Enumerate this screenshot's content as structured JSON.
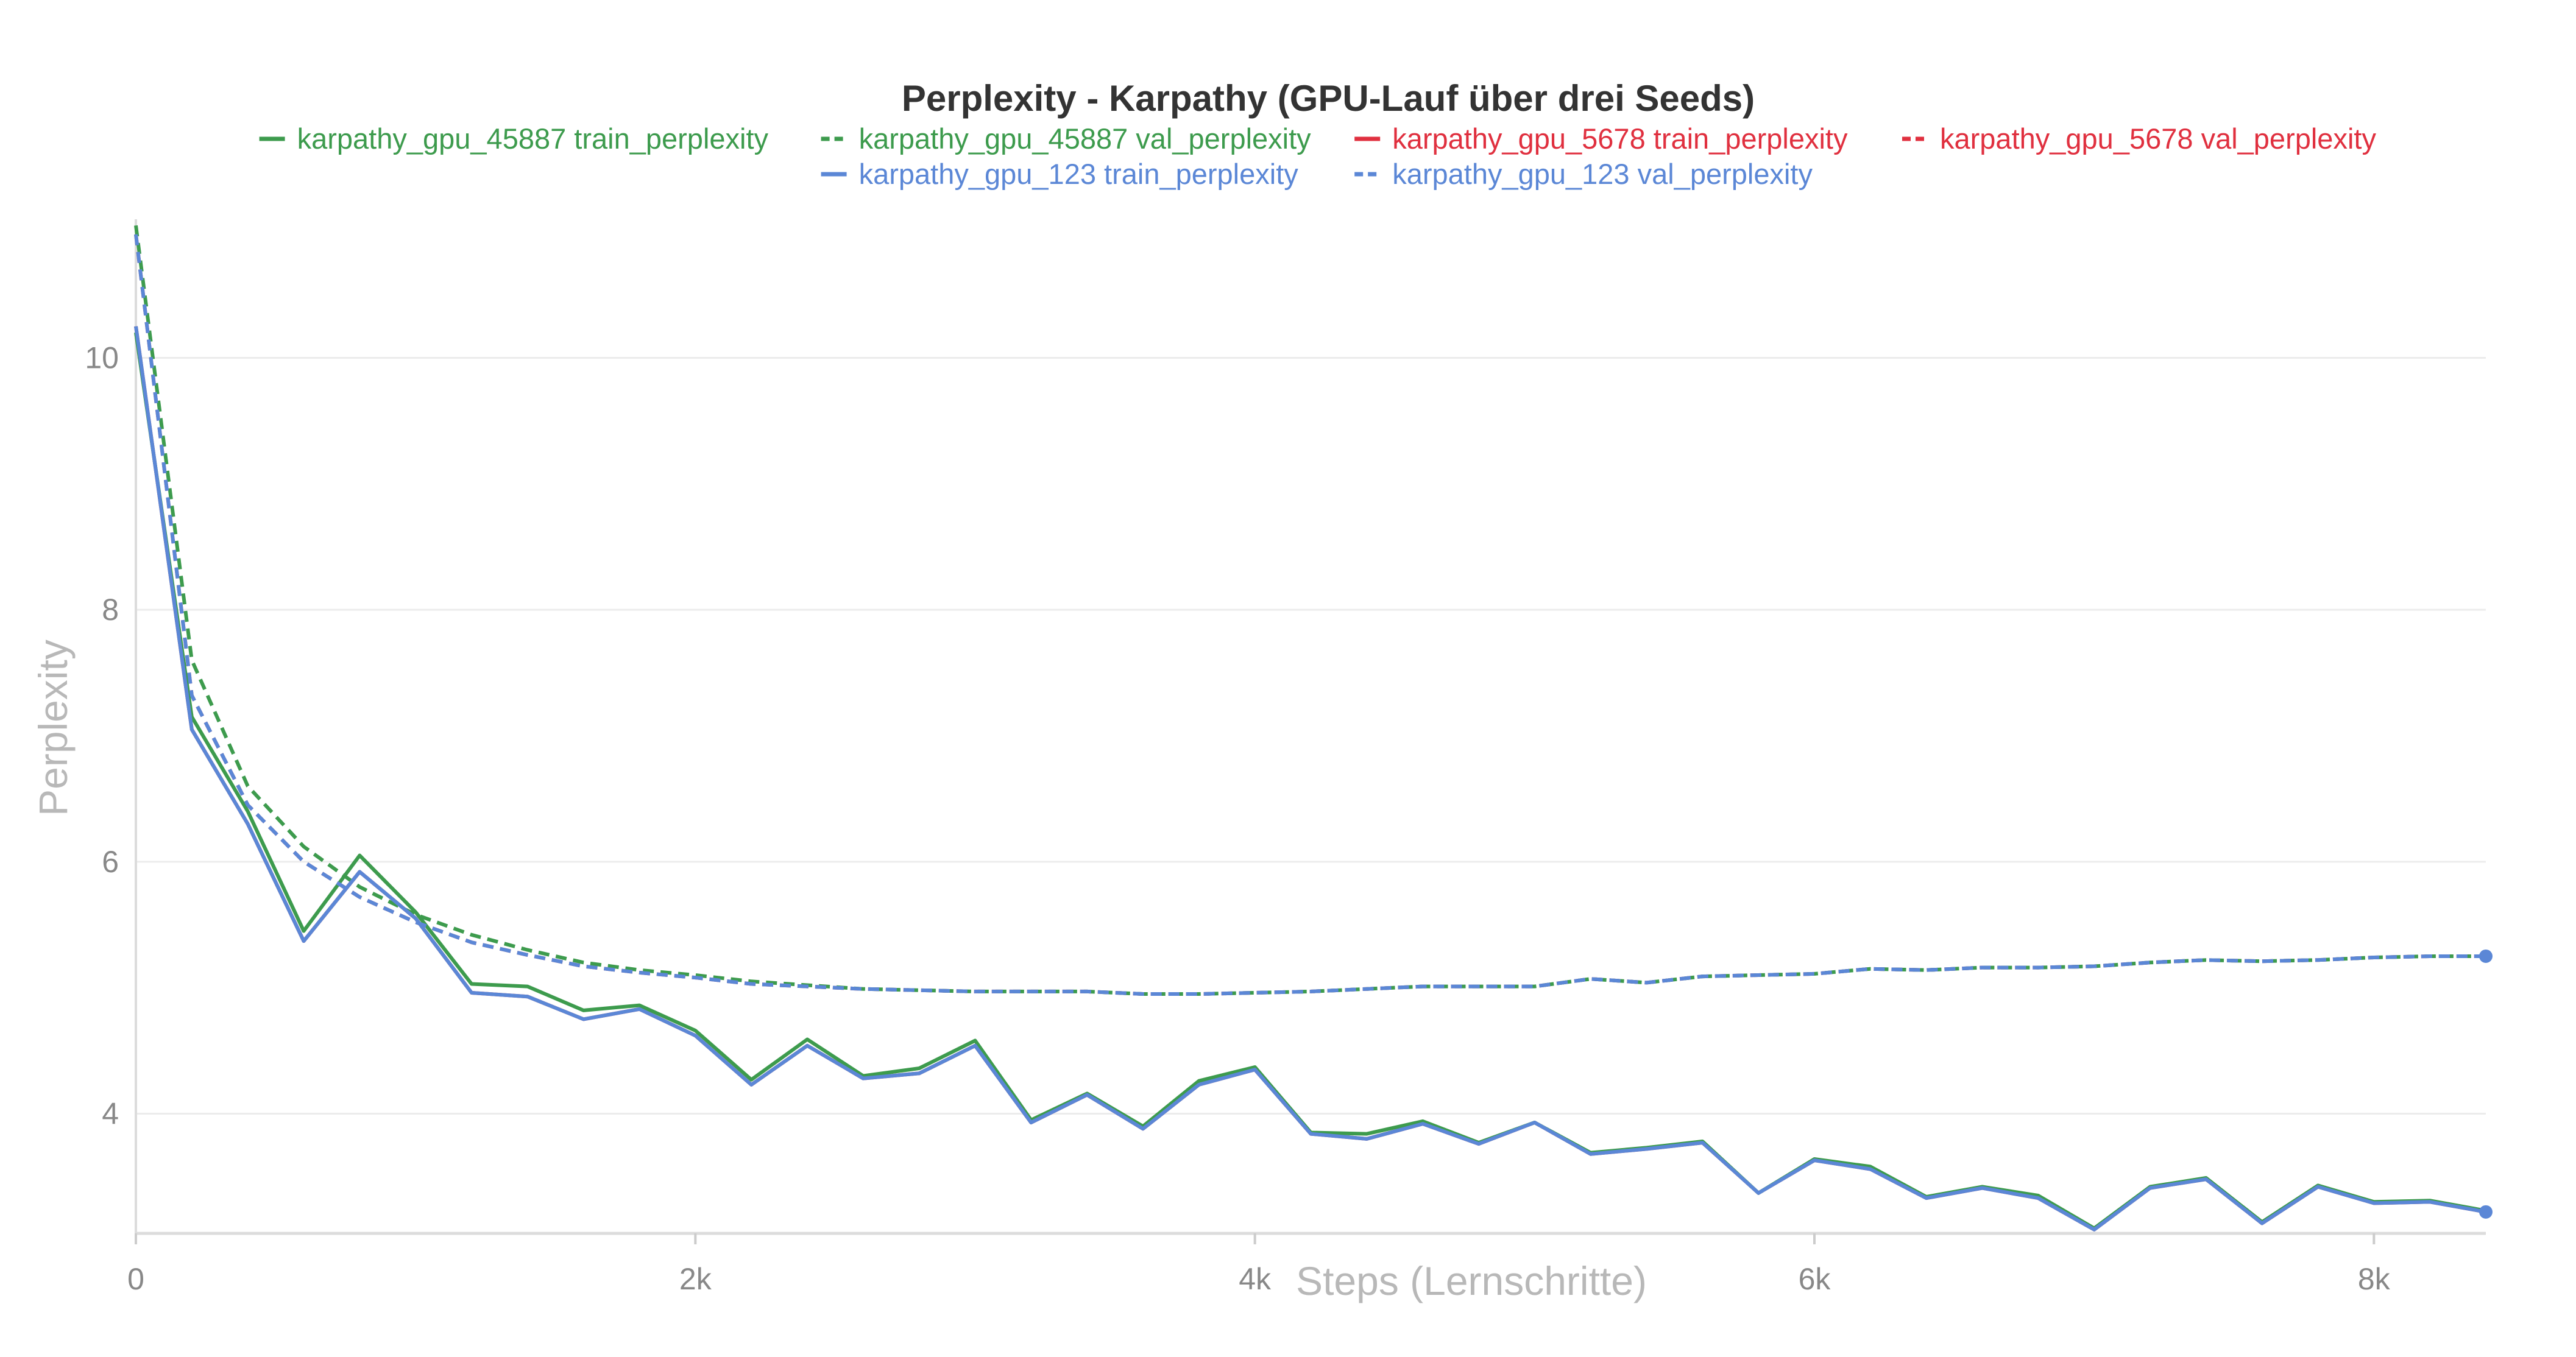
{
  "chart_data": {
    "type": "line",
    "title": "Perplexity - Karpathy (GPU-Lauf über drei Seeds)",
    "xlabel": "Steps (Lernschritte)",
    "ylabel": "Perplexity",
    "xlim": [
      0,
      8400
    ],
    "ylim": [
      3.05,
      11.1
    ],
    "x_ticks": [
      0,
      2000,
      4000,
      6000,
      8000
    ],
    "x_tick_labels": [
      "0",
      "2k",
      "4k",
      "6k",
      "8k"
    ],
    "y_ticks": [
      4,
      6,
      8,
      10
    ],
    "y_tick_labels": [
      "4",
      "6",
      "8",
      "10"
    ],
    "grid": true,
    "legend_position": "top",
    "series": [
      {
        "name": "karpathy_gpu_45887 train_perplexity",
        "color": "#3d9b4d",
        "dash": "solid",
        "x": [
          0,
          200,
          400,
          600,
          800,
          1000,
          1200,
          1400,
          1600,
          1800,
          2000,
          2200,
          2400,
          2600,
          2800,
          3000,
          3200,
          3400,
          3600,
          3800,
          4000,
          4200,
          4400,
          4600,
          4800,
          5000,
          5200,
          5400,
          5600,
          5800,
          6000,
          6200,
          6400,
          6600,
          6800,
          7000,
          7200,
          7400,
          7600,
          7800,
          8000,
          8200,
          8400
        ],
        "y": [
          10.2,
          7.15,
          6.4,
          5.45,
          6.05,
          5.6,
          5.03,
          5.01,
          4.82,
          4.86,
          4.66,
          4.27,
          4.59,
          4.3,
          4.36,
          4.58,
          3.95,
          4.16,
          3.9,
          4.26,
          4.37,
          3.85,
          3.84,
          3.94,
          3.77,
          3.93,
          3.69,
          3.73,
          3.78,
          3.37,
          3.64,
          3.58,
          3.34,
          3.42,
          3.35,
          3.09,
          3.42,
          3.49,
          3.14,
          3.43,
          3.3,
          3.31,
          3.23
        ]
      },
      {
        "name": "karpathy_gpu_45887 val_perplexity",
        "color": "#3d9b4d",
        "dash": "dashed",
        "x": [
          0,
          200,
          400,
          600,
          800,
          1000,
          1200,
          1400,
          1600,
          1800,
          2000,
          2200,
          2400,
          2600,
          2800,
          3000,
          3200,
          3400,
          3600,
          3800,
          4000,
          4200,
          4400,
          4600,
          4800,
          5000,
          5200,
          5400,
          5600,
          5800,
          6000,
          6200,
          6400,
          6600,
          6800,
          7000,
          7200,
          7400,
          7600,
          7800,
          8000,
          8200,
          8400
        ],
        "y": [
          11.05,
          7.6,
          6.6,
          6.12,
          5.8,
          5.58,
          5.42,
          5.3,
          5.2,
          5.14,
          5.1,
          5.05,
          5.02,
          4.99,
          4.98,
          4.97,
          4.97,
          4.97,
          4.95,
          4.95,
          4.96,
          4.97,
          4.99,
          5.01,
          5.01,
          5.01,
          5.07,
          5.04,
          5.09,
          5.1,
          5.11,
          5.15,
          5.14,
          5.16,
          5.16,
          5.17,
          5.2,
          5.22,
          5.21,
          5.22,
          5.24,
          5.25,
          5.25
        ]
      },
      {
        "name": "karpathy_gpu_5678 train_perplexity",
        "color": "#e0303f",
        "dash": "solid",
        "x": [
          0,
          200,
          400,
          600,
          800,
          1000,
          1200,
          1400,
          1600,
          1800,
          2000,
          2200,
          2400,
          2600,
          2800,
          3000,
          3200,
          3400,
          3600,
          3800,
          4000,
          4200,
          4400,
          4600,
          4800,
          5000,
          5200,
          5400,
          5600,
          5800,
          6000,
          6200,
          6400,
          6600,
          6800,
          7000,
          7200,
          7400,
          7600,
          7800,
          8000,
          8200,
          8400
        ],
        "y": [
          10.25,
          7.05,
          6.3,
          5.37,
          5.92,
          5.55,
          4.96,
          4.93,
          4.75,
          4.83,
          4.62,
          4.23,
          4.54,
          4.28,
          4.32,
          4.54,
          3.93,
          4.15,
          3.88,
          4.23,
          4.35,
          3.84,
          3.8,
          3.92,
          3.76,
          3.93,
          3.68,
          3.72,
          3.77,
          3.37,
          3.63,
          3.56,
          3.33,
          3.41,
          3.33,
          3.08,
          3.41,
          3.48,
          3.13,
          3.42,
          3.29,
          3.3,
          3.22
        ]
      },
      {
        "name": "karpathy_gpu_5678 val_perplexity",
        "color": "#e0303f",
        "dash": "dashed",
        "x": [
          0,
          200,
          400,
          600,
          800,
          1000,
          1200,
          1400,
          1600,
          1800,
          2000,
          2200,
          2400,
          2600,
          2800,
          3000,
          3200,
          3400,
          3600,
          3800,
          4000,
          4200,
          4400,
          4600,
          4800,
          5000,
          5200,
          5400,
          5600,
          5800,
          6000,
          6200,
          6400,
          6600,
          6800,
          7000,
          7200,
          7400,
          7600,
          7800,
          8000,
          8200,
          8400
        ],
        "y": [
          10.98,
          7.32,
          6.45,
          6.0,
          5.72,
          5.52,
          5.36,
          5.26,
          5.17,
          5.12,
          5.08,
          5.03,
          5.01,
          4.99,
          4.98,
          4.97,
          4.97,
          4.97,
          4.95,
          4.95,
          4.96,
          4.97,
          4.99,
          5.01,
          5.01,
          5.01,
          5.07,
          5.04,
          5.09,
          5.1,
          5.11,
          5.15,
          5.14,
          5.16,
          5.16,
          5.17,
          5.2,
          5.22,
          5.21,
          5.22,
          5.24,
          5.25,
          5.25
        ]
      },
      {
        "name": "karpathy_gpu_123 train_perplexity",
        "color": "#5b87d6",
        "dash": "solid",
        "x": [
          0,
          200,
          400,
          600,
          800,
          1000,
          1200,
          1400,
          1600,
          1800,
          2000,
          2200,
          2400,
          2600,
          2800,
          3000,
          3200,
          3400,
          3600,
          3800,
          4000,
          4200,
          4400,
          4600,
          4800,
          5000,
          5200,
          5400,
          5600,
          5800,
          6000,
          6200,
          6400,
          6600,
          6800,
          7000,
          7200,
          7400,
          7600,
          7800,
          8000,
          8200,
          8400
        ],
        "y": [
          10.25,
          7.05,
          6.3,
          5.37,
          5.92,
          5.55,
          4.96,
          4.93,
          4.75,
          4.83,
          4.62,
          4.23,
          4.54,
          4.28,
          4.32,
          4.54,
          3.93,
          4.15,
          3.88,
          4.23,
          4.35,
          3.84,
          3.8,
          3.92,
          3.76,
          3.93,
          3.68,
          3.72,
          3.77,
          3.37,
          3.63,
          3.56,
          3.33,
          3.41,
          3.33,
          3.08,
          3.41,
          3.48,
          3.13,
          3.42,
          3.29,
          3.3,
          3.22
        ]
      },
      {
        "name": "karpathy_gpu_123 val_perplexity",
        "color": "#5b87d6",
        "dash": "dashed",
        "x": [
          0,
          200,
          400,
          600,
          800,
          1000,
          1200,
          1400,
          1600,
          1800,
          2000,
          2200,
          2400,
          2600,
          2800,
          3000,
          3200,
          3400,
          3600,
          3800,
          4000,
          4200,
          4400,
          4600,
          4800,
          5000,
          5200,
          5400,
          5600,
          5800,
          6000,
          6200,
          6400,
          6600,
          6800,
          7000,
          7200,
          7400,
          7600,
          7800,
          8000,
          8200,
          8400
        ],
        "y": [
          10.98,
          7.32,
          6.45,
          6.0,
          5.72,
          5.52,
          5.36,
          5.26,
          5.17,
          5.12,
          5.08,
          5.03,
          5.01,
          4.99,
          4.98,
          4.97,
          4.97,
          4.97,
          4.95,
          4.95,
          4.96,
          4.97,
          4.99,
          5.01,
          5.01,
          5.01,
          5.07,
          5.04,
          5.09,
          5.1,
          5.11,
          5.15,
          5.14,
          5.16,
          5.16,
          5.17,
          5.2,
          5.22,
          5.21,
          5.22,
          5.24,
          5.25,
          5.25
        ]
      }
    ]
  }
}
